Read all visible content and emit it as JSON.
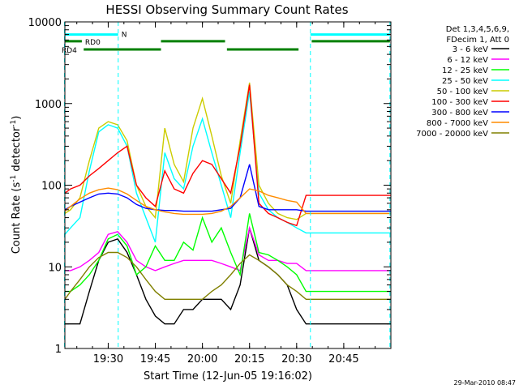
{
  "chart_data": {
    "type": "line",
    "title": "HESSI Observing Summary Count Rates",
    "xlabel": "Start Time (12-Jun-05 19:16:02)",
    "ylabel_main": "Count Rate (s",
    "ylabel_sup1": "-1",
    "ylabel_mid": " detector",
    "ylabel_sup2": "-1",
    "ylabel_end": ")",
    "yscale": "log",
    "ylim": [
      1,
      10000
    ],
    "xlim_minutes": [
      19.27,
      21.0
    ],
    "x_ticks": [
      {
        "value": 19.5,
        "label": "19:30"
      },
      {
        "value": 19.75,
        "label": "19:45"
      },
      {
        "value": 20.0,
        "label": "20:00"
      },
      {
        "value": 20.25,
        "label": "20:15"
      },
      {
        "value": 20.5,
        "label": "20:30"
      },
      {
        "value": 20.75,
        "label": "20:45"
      }
    ],
    "y_ticks": [
      {
        "value": 1,
        "label": "1"
      },
      {
        "value": 10,
        "label": "10"
      },
      {
        "value": 100,
        "label": "100"
      },
      {
        "value": 1000,
        "label": "1000"
      },
      {
        "value": 10000,
        "label": "10000"
      }
    ],
    "legend_header": [
      "Det 1,3,4,5,6,9,",
      "FDecim 1, Att 0"
    ],
    "legend_position": "right",
    "timestamp": "29-Mar-2010 08:47",
    "night_boundaries": [
      19.268,
      19.553,
      20.573,
      20.995
    ],
    "flag_bars": [
      {
        "label": "N",
        "color": "#00ffff",
        "level": 7000,
        "segments": [
          [
            19.268,
            19.553
          ],
          [
            20.573,
            20.995
          ]
        ]
      },
      {
        "label": "RD0",
        "color": "#008000",
        "level": 5800,
        "segments": [
          [
            19.268,
            19.36
          ],
          [
            19.78,
            20.12
          ],
          [
            20.58,
            20.995
          ]
        ]
      },
      {
        "label": "RD4",
        "color": "#008000",
        "level": 4600,
        "segments": [
          [
            19.37,
            19.78
          ],
          [
            20.13,
            20.51
          ]
        ]
      }
    ],
    "series": [
      {
        "name": "3 - 6 keV",
        "color": "#000000",
        "x": [
          19.27,
          19.3,
          19.35,
          19.4,
          19.45,
          19.5,
          19.55,
          19.6,
          19.65,
          19.7,
          19.75,
          19.8,
          19.85,
          19.9,
          19.95,
          20.0,
          20.05,
          20.1,
          20.15,
          20.2,
          20.25,
          20.3,
          20.35,
          20.4,
          20.45,
          20.5,
          20.55,
          20.6,
          20.65,
          20.7,
          20.75,
          20.8,
          20.85,
          20.9,
          20.95,
          21.0
        ],
        "y": [
          2,
          2,
          2,
          5,
          12,
          20,
          22,
          15,
          8,
          4,
          2.5,
          2,
          2,
          3,
          3,
          4,
          4,
          4,
          3,
          6,
          30,
          12,
          10,
          8,
          6,
          3,
          2,
          2,
          2,
          2,
          2,
          2,
          2,
          2,
          2,
          2
        ]
      },
      {
        "name": "6 - 12 keV",
        "color": "#ff00ff",
        "x": [
          19.27,
          19.3,
          19.35,
          19.4,
          19.45,
          19.5,
          19.55,
          19.6,
          19.65,
          19.7,
          19.75,
          19.8,
          19.85,
          19.9,
          19.95,
          20.0,
          20.05,
          20.1,
          20.15,
          20.2,
          20.25,
          20.3,
          20.35,
          20.4,
          20.45,
          20.5,
          20.55,
          20.6,
          20.65,
          20.7,
          20.75,
          20.8,
          20.85,
          20.9,
          20.95,
          21.0
        ],
        "y": [
          9,
          9,
          10,
          12,
          15,
          25,
          27,
          20,
          12,
          10,
          9,
          10,
          11,
          12,
          12,
          12,
          12,
          11,
          10,
          9,
          30,
          14,
          12,
          12,
          11,
          11,
          9,
          9,
          9,
          9,
          9,
          9,
          9,
          9,
          9,
          9
        ]
      },
      {
        "name": "12 - 25 keV",
        "color": "#00ff00",
        "x": [
          19.27,
          19.3,
          19.35,
          19.4,
          19.45,
          19.5,
          19.55,
          19.6,
          19.65,
          19.7,
          19.75,
          19.8,
          19.85,
          19.9,
          19.95,
          20.0,
          20.05,
          20.1,
          20.15,
          20.2,
          20.25,
          20.3,
          20.35,
          20.4,
          20.45,
          20.5,
          20.55,
          20.6,
          20.65,
          20.7,
          20.75,
          20.8,
          20.85,
          20.9,
          20.95,
          21.0
        ],
        "y": [
          5,
          5,
          6,
          8,
          12,
          22,
          25,
          18,
          8,
          10,
          18,
          12,
          12,
          20,
          16,
          40,
          20,
          30,
          15,
          8,
          45,
          15,
          14,
          12,
          10,
          8,
          5,
          5,
          5,
          5,
          5,
          5,
          5,
          5,
          5,
          5
        ]
      },
      {
        "name": "25 - 50 keV",
        "color": "#00ffff",
        "x": [
          19.27,
          19.3,
          19.35,
          19.4,
          19.45,
          19.5,
          19.55,
          19.6,
          19.65,
          19.7,
          19.75,
          19.8,
          19.85,
          19.9,
          19.95,
          20.0,
          20.05,
          20.1,
          20.15,
          20.2,
          20.25,
          20.3,
          20.35,
          20.4,
          20.45,
          20.5,
          20.55,
          20.6,
          20.65,
          20.7,
          20.75,
          20.8,
          20.85,
          20.9,
          20.95,
          21.0
        ],
        "y": [
          25,
          30,
          40,
          150,
          450,
          550,
          500,
          300,
          80,
          40,
          20,
          250,
          120,
          90,
          300,
          650,
          250,
          100,
          40,
          250,
          1400,
          80,
          50,
          40,
          35,
          30,
          26,
          26,
          26,
          26,
          26,
          26,
          26,
          26,
          26,
          26
        ]
      },
      {
        "name": "50 - 100 keV",
        "color": "#cccc00",
        "x": [
          19.27,
          19.3,
          19.35,
          19.4,
          19.45,
          19.5,
          19.55,
          19.6,
          19.65,
          19.7,
          19.75,
          19.8,
          19.85,
          19.9,
          19.95,
          20.0,
          20.05,
          20.1,
          20.15,
          20.2,
          20.25,
          20.3,
          20.35,
          20.4,
          20.45,
          20.5,
          20.55,
          20.6,
          20.65,
          20.7,
          20.75,
          20.8,
          20.85,
          20.9,
          20.95,
          21.0
        ],
        "y": [
          45,
          50,
          70,
          200,
          500,
          600,
          550,
          350,
          100,
          55,
          40,
          500,
          180,
          110,
          500,
          1150,
          400,
          130,
          60,
          350,
          1800,
          100,
          60,
          45,
          40,
          38,
          45,
          45,
          45,
          45,
          45,
          45,
          45,
          45,
          45,
          45
        ]
      },
      {
        "name": "100 - 300 keV",
        "color": "#ff0000",
        "x": [
          19.27,
          19.3,
          19.35,
          19.4,
          19.45,
          19.5,
          19.55,
          19.6,
          19.65,
          19.7,
          19.75,
          19.8,
          19.85,
          19.9,
          19.95,
          20.0,
          20.05,
          20.1,
          20.15,
          20.2,
          20.25,
          20.3,
          20.35,
          20.4,
          20.45,
          20.5,
          20.55,
          20.6,
          20.65,
          20.7,
          20.75,
          20.8,
          20.85,
          20.9,
          20.95,
          21.0
        ],
        "y": [
          80,
          90,
          100,
          130,
          160,
          200,
          250,
          300,
          100,
          70,
          55,
          150,
          90,
          80,
          140,
          200,
          180,
          120,
          80,
          300,
          1700,
          60,
          45,
          40,
          35,
          32,
          75,
          75,
          75,
          75,
          75,
          75,
          75,
          75,
          75,
          75
        ]
      },
      {
        "name": "300 - 800 keV",
        "color": "#0000ff",
        "x": [
          19.27,
          19.3,
          19.35,
          19.4,
          19.45,
          19.5,
          19.55,
          19.6,
          19.65,
          19.7,
          19.75,
          19.8,
          19.85,
          19.9,
          19.95,
          20.0,
          20.05,
          20.1,
          20.15,
          20.2,
          20.25,
          20.3,
          20.35,
          20.4,
          20.45,
          20.5,
          20.55,
          20.6,
          20.65,
          20.7,
          20.75,
          20.8,
          20.85,
          20.9,
          20.95,
          21.0
        ],
        "y": [
          50,
          55,
          62,
          70,
          78,
          80,
          78,
          70,
          58,
          52,
          50,
          49,
          49,
          48,
          48,
          48,
          48,
          50,
          52,
          70,
          180,
          55,
          50,
          50,
          50,
          50,
          48,
          48,
          48,
          48,
          48,
          48,
          48,
          48,
          48,
          48
        ]
      },
      {
        "name": "800 - 7000 keV",
        "color": "#ff8c00",
        "x": [
          19.27,
          19.3,
          19.35,
          19.4,
          19.45,
          19.5,
          19.55,
          19.6,
          19.65,
          19.7,
          19.75,
          19.8,
          19.85,
          19.9,
          19.95,
          20.0,
          20.05,
          20.1,
          20.15,
          20.2,
          20.25,
          20.3,
          20.35,
          20.4,
          20.45,
          20.5,
          20.55,
          20.6,
          20.65,
          20.7,
          20.75,
          20.8,
          20.85,
          20.9,
          20.95,
          21.0
        ],
        "y": [
          48,
          55,
          68,
          80,
          88,
          92,
          88,
          78,
          65,
          55,
          50,
          47,
          45,
          44,
          44,
          44,
          45,
          48,
          55,
          70,
          90,
          85,
          75,
          70,
          65,
          62,
          45,
          45,
          45,
          45,
          45,
          45,
          45,
          45,
          45,
          45
        ]
      },
      {
        "name": "7000 - 20000 keV",
        "color": "#808000",
        "x": [
          19.27,
          19.3,
          19.35,
          19.4,
          19.45,
          19.5,
          19.55,
          19.6,
          19.65,
          19.7,
          19.75,
          19.8,
          19.85,
          19.9,
          19.95,
          20.0,
          20.05,
          20.1,
          20.15,
          20.2,
          20.25,
          20.3,
          20.35,
          20.4,
          20.45,
          20.5,
          20.55,
          20.6,
          20.65,
          20.7,
          20.75,
          20.8,
          20.85,
          20.9,
          20.95,
          21.0
        ],
        "y": [
          4,
          5,
          7,
          10,
          13,
          15,
          15,
          13,
          10,
          7,
          5,
          4,
          4,
          4,
          4,
          4,
          5,
          6,
          8,
          11,
          14,
          12,
          10,
          8,
          6,
          5,
          4,
          4,
          4,
          4,
          4,
          4,
          4,
          4,
          4,
          4
        ]
      }
    ]
  }
}
